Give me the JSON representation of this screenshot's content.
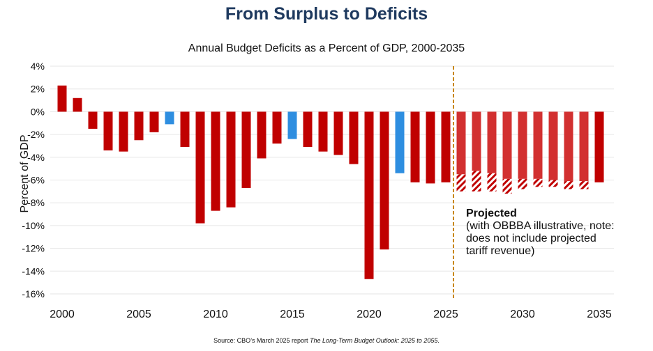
{
  "title": "From Surplus to Deficits",
  "chart_data": {
    "type": "bar",
    "title": "Annual Budget Deficits as a Percent of GDP, 2000-2035",
    "ylabel": "Percent of GDP",
    "xlabel": "",
    "ylim": [
      -16,
      4
    ],
    "yticks": [
      "4%",
      "2%",
      "0%",
      "-2%",
      "-4%",
      "-6%",
      "-8%",
      "-10%",
      "-12%",
      "-14%",
      "-16%"
    ],
    "ytick_values": [
      4,
      2,
      0,
      -2,
      -4,
      -6,
      -8,
      -10,
      -12,
      -14,
      -16
    ],
    "xticks": [
      "2000",
      "2005",
      "2010",
      "2015",
      "2020",
      "2025",
      "2030",
      "2035"
    ],
    "grid": true,
    "categories": [
      2000,
      2001,
      2002,
      2003,
      2004,
      2005,
      2006,
      2007,
      2008,
      2009,
      2010,
      2011,
      2012,
      2013,
      2014,
      2015,
      2016,
      2017,
      2018,
      2019,
      2020,
      2021,
      2022,
      2023,
      2024,
      2025,
      2026,
      2027,
      2028,
      2029,
      2030,
      2031,
      2032,
      2033,
      2034,
      2035
    ],
    "values": [
      2.3,
      1.2,
      -1.5,
      -3.4,
      -3.5,
      -2.5,
      -1.8,
      -1.1,
      -3.1,
      -9.8,
      -8.7,
      -8.4,
      -6.7,
      -4.1,
      -2.8,
      -2.4,
      -3.1,
      -3.5,
      -3.8,
      -4.6,
      -14.7,
      -12.1,
      -5.4,
      -6.2,
      -6.3,
      -6.2,
      -5.5,
      -5.2,
      -5.4,
      -5.9,
      -5.9,
      -5.9,
      -6.0,
      -6.1,
      -6.1,
      -6.2
    ],
    "illustrative_total": [
      null,
      null,
      null,
      null,
      null,
      null,
      null,
      null,
      null,
      null,
      null,
      null,
      null,
      null,
      null,
      null,
      null,
      null,
      null,
      null,
      null,
      null,
      null,
      null,
      null,
      null,
      -7.0,
      -7.0,
      -7.0,
      -7.2,
      -6.8,
      -6.6,
      -6.6,
      -6.8,
      -6.8,
      null
    ],
    "bar_kind": [
      "deficit",
      "deficit",
      "deficit",
      "deficit",
      "deficit",
      "deficit",
      "deficit",
      "declining",
      "deficit",
      "deficit",
      "deficit",
      "deficit",
      "deficit",
      "deficit",
      "deficit",
      "declining",
      "deficit",
      "deficit",
      "deficit",
      "deficit",
      "deficit",
      "deficit",
      "declining",
      "deficit",
      "deficit",
      "deficit",
      "projected",
      "projected",
      "projected",
      "projected",
      "projected",
      "projected",
      "projected",
      "projected",
      "projected",
      "deficit"
    ],
    "projection_start": 2025.5,
    "colors": {
      "deficit": "#c00000",
      "declining": "#2e8ee0",
      "projected": "#d23030",
      "hatch": "#c00000",
      "divider": "#c8860a",
      "grid": "#e6e6e6"
    },
    "annotation": {
      "heading": "Projected",
      "lines": [
        "(with OBBBA illustrative, note:",
        "does not include projected",
        "tariff revenue)"
      ]
    }
  },
  "source": {
    "prefix": "Source: CBO’s March 2025 report ",
    "report": "The Long-Term Budget Outlook: 2025 to 2055",
    "suffix": "."
  }
}
